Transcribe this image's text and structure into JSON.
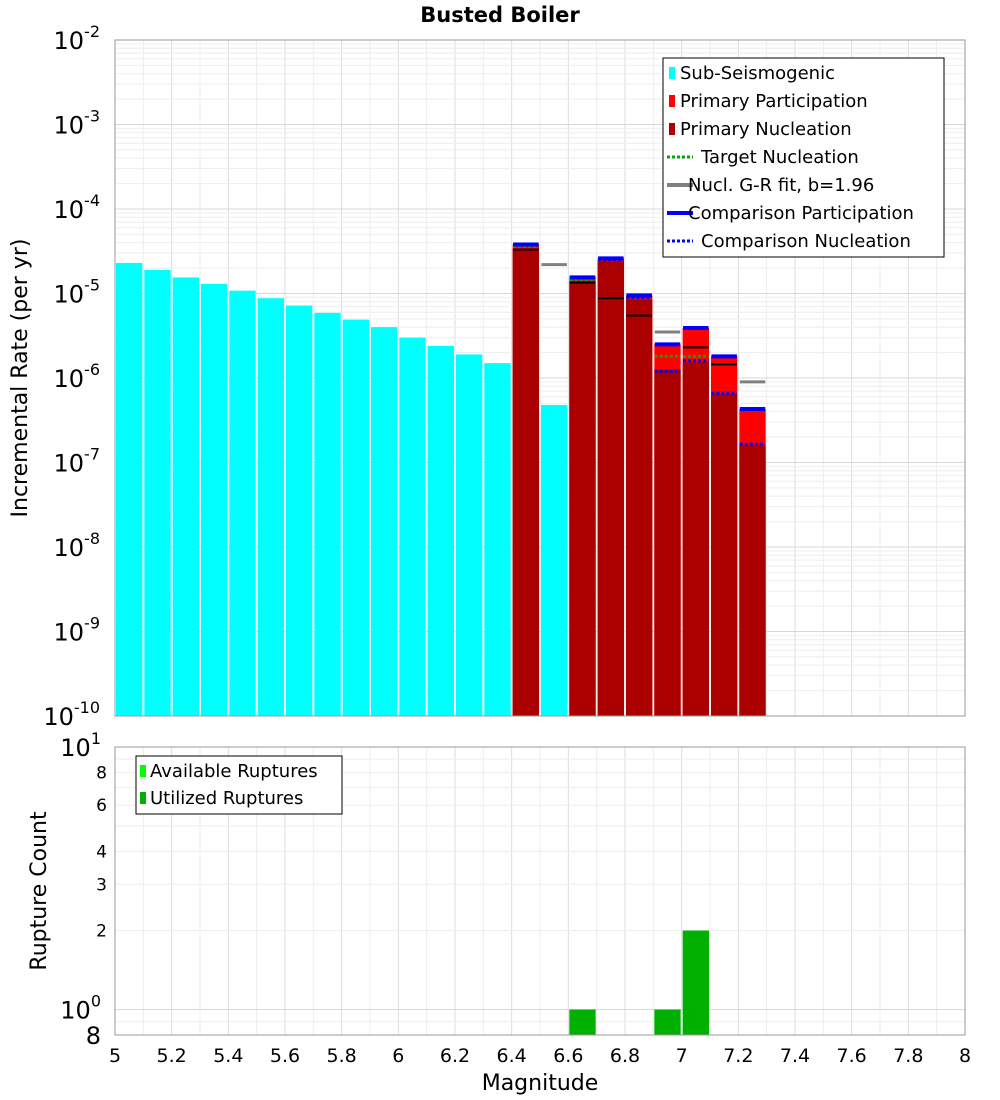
{
  "chart_data": [
    {
      "type": "bar",
      "title": "Busted Boiler",
      "xlabel": "",
      "ylabel": "Incremental Rate (per yr)",
      "yscale": "log",
      "xlim": [
        5,
        8
      ],
      "ylim": [
        1e-10,
        0.01
      ],
      "y_tick_labels": [
        {
          "value": 0.01,
          "base": "10",
          "exp": "-2"
        },
        {
          "value": 0.001,
          "base": "10",
          "exp": "-3"
        },
        {
          "value": 0.0001,
          "base": "10",
          "exp": "-4"
        },
        {
          "value": 1e-05,
          "base": "10",
          "exp": "-5"
        },
        {
          "value": 1e-06,
          "base": "10",
          "exp": "-6"
        },
        {
          "value": 1e-07,
          "base": "10",
          "exp": "-7"
        },
        {
          "value": 1e-08,
          "base": "10",
          "exp": "-8"
        },
        {
          "value": 1e-09,
          "base": "10",
          "exp": "-9"
        },
        {
          "value": 1e-10,
          "base": "10",
          "exp": "-10"
        }
      ],
      "grid": true,
      "legend_position": "top-right",
      "legend": [
        {
          "label": "Sub-Seismogenic",
          "style": "box",
          "color": "#00ffff"
        },
        {
          "label": "Primary Participation",
          "style": "box",
          "color": "#ff0000"
        },
        {
          "label": "Primary Nucleation",
          "style": "box",
          "color": "#aa0000"
        },
        {
          "label": "Target Nucleation",
          "style": "dotted",
          "color": "#00aa00"
        },
        {
          "label": "Nucl. G-R fit, b=1.96",
          "style": "line",
          "color": "#808080"
        },
        {
          "label": "Comparison Participation",
          "style": "line",
          "color": "#0000ff"
        },
        {
          "label": "Comparison Nucleation",
          "style": "dotted",
          "color": "#0000ff"
        }
      ],
      "series": [
        {
          "name": "Sub-Seismogenic",
          "color": "#00ffff",
          "bin_width": 0.1,
          "points": [
            [
              5.05,
              2.3e-05
            ],
            [
              5.15,
              1.9e-05
            ],
            [
              5.25,
              1.55e-05
            ],
            [
              5.35,
              1.3e-05
            ],
            [
              5.45,
              1.08e-05
            ],
            [
              5.55,
              8.8e-06
            ],
            [
              5.65,
              7.2e-06
            ],
            [
              5.75,
              5.9e-06
            ],
            [
              5.85,
              4.9e-06
            ],
            [
              5.95,
              4e-06
            ],
            [
              6.05,
              3e-06
            ],
            [
              6.15,
              2.4e-06
            ],
            [
              6.25,
              1.9e-06
            ],
            [
              6.35,
              1.5e-06
            ],
            [
              6.55,
              4.8e-07
            ]
          ]
        },
        {
          "name": "Primary Participation",
          "color": "#ff0000",
          "bin_width": 0.1,
          "points": [
            [
              6.45,
              3.8e-05
            ],
            [
              6.65,
              1.55e-05
            ],
            [
              6.75,
              2.6e-05
            ],
            [
              6.85,
              9.5e-06
            ],
            [
              6.95,
              2.5e-06
            ],
            [
              7.05,
              3.9e-06
            ],
            [
              7.15,
              1.8e-06
            ],
            [
              7.25,
              4.3e-07
            ]
          ]
        },
        {
          "name": "Primary Nucleation",
          "color": "#aa0000",
          "bin_width": 0.1,
          "points": [
            [
              6.45,
              3.4e-05
            ],
            [
              6.65,
              1.4e-05
            ],
            [
              6.75,
              2.4e-05
            ],
            [
              6.85,
              8.5e-06
            ],
            [
              6.95,
              1.25e-06
            ],
            [
              7.05,
              1.55e-06
            ],
            [
              7.15,
              6.5e-07
            ],
            [
              7.25,
              1.6e-07
            ]
          ]
        },
        {
          "name": "Target Nucleation",
          "color": "#00aa00",
          "style": "dotted",
          "points": [
            [
              6.45,
              3.6e-05
            ],
            [
              6.65,
              1.45e-05
            ],
            [
              6.75,
              2.5e-05
            ],
            [
              6.85,
              9e-06
            ],
            [
              6.95,
              1.8e-06
            ],
            [
              7.05,
              1.8e-06
            ]
          ]
        },
        {
          "name": "Nucl. G-R fit, b=1.96",
          "color": "#808080",
          "style": "line",
          "points": [
            [
              6.55,
              2.2e-05
            ],
            [
              6.95,
              3.5e-06
            ],
            [
              7.25,
              9e-07
            ]
          ]
        },
        {
          "name": "Comparison Participation",
          "color": "#0000ff",
          "style": "line",
          "points": [
            [
              6.45,
              3.8e-05
            ],
            [
              6.65,
              1.55e-05
            ],
            [
              6.75,
              2.6e-05
            ],
            [
              6.85,
              9.5e-06
            ],
            [
              6.95,
              2.5e-06
            ],
            [
              7.05,
              3.9e-06
            ],
            [
              7.15,
              1.8e-06
            ],
            [
              7.25,
              4.3e-07
            ]
          ]
        },
        {
          "name": "Comparison Nucleation",
          "color": "#0000ff",
          "style": "dotted",
          "points": [
            [
              6.45,
              3.8e-05
            ],
            [
              6.65,
              1.55e-05
            ],
            [
              6.75,
              2.5e-05
            ],
            [
              6.85,
              9e-06
            ],
            [
              6.95,
              1.2e-06
            ],
            [
              7.05,
              1.6e-06
            ],
            [
              7.15,
              6.6e-07
            ],
            [
              7.25,
              1.65e-07
            ]
          ]
        },
        {
          "name": "G-R secondary marks",
          "color": "#000000",
          "style": "line",
          "points": [
            [
              6.45,
              3.3e-05
            ],
            [
              6.65,
              1.35e-05
            ],
            [
              6.75,
              8.8e-06
            ],
            [
              6.85,
              5.5e-06
            ],
            [
              7.05,
              2.3e-06
            ],
            [
              7.15,
              1.45e-06
            ]
          ]
        }
      ]
    },
    {
      "type": "bar",
      "title": "",
      "xlabel": "Magnitude",
      "ylabel": "Rupture Count",
      "yscale": "log",
      "xlim": [
        5,
        8
      ],
      "ylim": [
        0.8,
        10
      ],
      "x_ticks": [
        "5",
        "5.2",
        "5.4",
        "5.6",
        "5.8",
        "6",
        "6.2",
        "6.4",
        "6.6",
        "6.8",
        "7",
        "7.2",
        "7.4",
        "7.6",
        "7.8",
        "8"
      ],
      "y_tick_labels": [
        {
          "value": 10,
          "base": "10",
          "exp": "1"
        },
        {
          "value": 8,
          "base": "8",
          "exp": ""
        },
        {
          "value": 6,
          "base": "6",
          "exp": ""
        },
        {
          "value": 4,
          "base": "4",
          "exp": ""
        },
        {
          "value": 3,
          "base": "3",
          "exp": ""
        },
        {
          "value": 2,
          "base": "2",
          "exp": ""
        },
        {
          "value": 1,
          "base": "10",
          "exp": "0"
        },
        {
          "value": 0.8,
          "base": "8",
          "exp": ""
        }
      ],
      "grid": true,
      "legend_position": "top-left",
      "legend": [
        {
          "label": "Available Ruptures",
          "style": "box",
          "color": "#00ff00"
        },
        {
          "label": "Utilized Ruptures",
          "style": "box",
          "color": "#00b000"
        }
      ],
      "series": [
        {
          "name": "Utilized Ruptures",
          "color": "#00b000",
          "bin_width": 0.1,
          "points": [
            [
              6.65,
              1
            ],
            [
              6.95,
              1
            ],
            [
              7.05,
              2
            ]
          ]
        }
      ]
    }
  ]
}
